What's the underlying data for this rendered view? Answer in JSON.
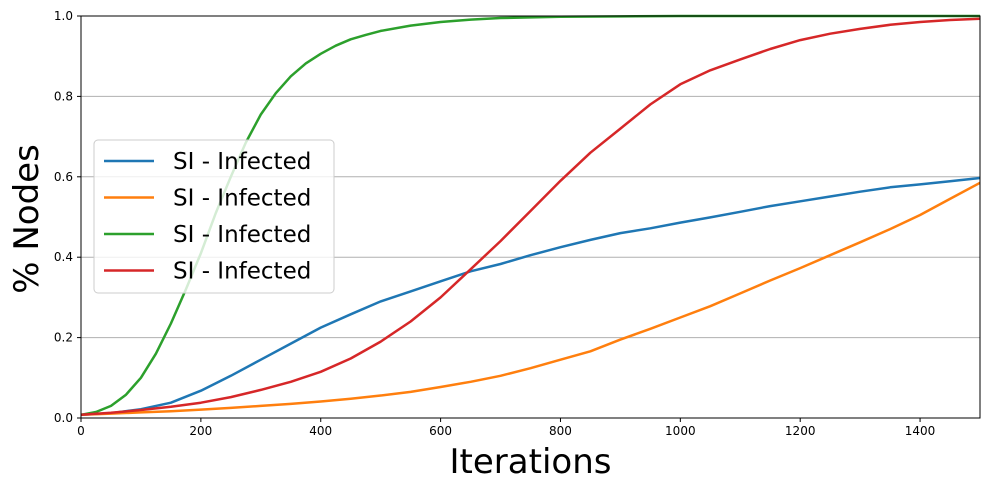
{
  "chart_data": {
    "type": "line",
    "xlabel": "Iterations",
    "ylabel": "% Nodes",
    "xlim": [
      0,
      1500
    ],
    "ylim": [
      0,
      1.0
    ],
    "x_ticks": [
      0,
      200,
      400,
      600,
      800,
      1000,
      1200,
      1400
    ],
    "y_ticks": [
      0.0,
      0.2,
      0.4,
      0.6,
      0.8,
      1.0
    ],
    "x_tick_labels": [
      "0",
      "200",
      "400",
      "600",
      "800",
      "1000",
      "1200",
      "1400"
    ],
    "y_tick_labels": [
      "0.0",
      "0.2",
      "0.4",
      "0.6",
      "0.8",
      "1.0"
    ],
    "grid": "horizontal",
    "legend_position": "center-left",
    "series": [
      {
        "name": "SI - Infected",
        "color": "#1f77b4",
        "x": [
          0,
          50,
          100,
          150,
          200,
          250,
          300,
          350,
          400,
          450,
          500,
          550,
          600,
          650,
          700,
          750,
          800,
          850,
          900,
          950,
          1000,
          1050,
          1100,
          1150,
          1200,
          1250,
          1300,
          1350,
          1400,
          1450,
          1500
        ],
        "y": [
          0.008,
          0.012,
          0.022,
          0.038,
          0.068,
          0.105,
          0.145,
          0.185,
          0.225,
          0.258,
          0.29,
          0.315,
          0.34,
          0.365,
          0.383,
          0.405,
          0.425,
          0.443,
          0.46,
          0.472,
          0.486,
          0.499,
          0.513,
          0.527,
          0.539,
          0.551,
          0.563,
          0.574,
          0.581,
          0.589,
          0.597
        ]
      },
      {
        "name": "SI - Infected",
        "color": "#ff7f0e",
        "x": [
          0,
          50,
          100,
          150,
          200,
          250,
          300,
          350,
          400,
          450,
          500,
          550,
          600,
          650,
          700,
          750,
          800,
          850,
          900,
          950,
          1000,
          1050,
          1100,
          1150,
          1200,
          1250,
          1300,
          1350,
          1400,
          1450,
          1500
        ],
        "y": [
          0.008,
          0.011,
          0.014,
          0.017,
          0.021,
          0.025,
          0.03,
          0.035,
          0.041,
          0.048,
          0.056,
          0.065,
          0.077,
          0.09,
          0.105,
          0.124,
          0.145,
          0.166,
          0.195,
          0.222,
          0.25,
          0.278,
          0.31,
          0.342,
          0.373,
          0.405,
          0.437,
          0.47,
          0.505,
          0.545,
          0.585
        ]
      },
      {
        "name": "SI - Infected",
        "color": "#2ca02c",
        "x": [
          0,
          25,
          50,
          75,
          100,
          125,
          150,
          175,
          200,
          225,
          250,
          275,
          300,
          325,
          350,
          375,
          400,
          425,
          450,
          475,
          500,
          550,
          600,
          650,
          700,
          800,
          900,
          1000,
          1200,
          1500
        ],
        "y": [
          0.008,
          0.015,
          0.03,
          0.058,
          0.1,
          0.16,
          0.235,
          0.32,
          0.41,
          0.51,
          0.6,
          0.685,
          0.755,
          0.808,
          0.85,
          0.882,
          0.906,
          0.926,
          0.942,
          0.953,
          0.963,
          0.976,
          0.985,
          0.991,
          0.995,
          0.998,
          0.999,
          1.0,
          1.0,
          1.0
        ]
      },
      {
        "name": "SI - Infected",
        "color": "#d62728",
        "x": [
          0,
          50,
          100,
          150,
          200,
          250,
          300,
          350,
          400,
          450,
          500,
          550,
          600,
          650,
          700,
          750,
          800,
          850,
          900,
          950,
          1000,
          1050,
          1100,
          1150,
          1200,
          1250,
          1300,
          1350,
          1400,
          1450,
          1500
        ],
        "y": [
          0.008,
          0.013,
          0.02,
          0.028,
          0.038,
          0.052,
          0.07,
          0.09,
          0.115,
          0.148,
          0.19,
          0.24,
          0.3,
          0.37,
          0.44,
          0.515,
          0.59,
          0.66,
          0.72,
          0.78,
          0.83,
          0.865,
          0.892,
          0.918,
          0.94,
          0.956,
          0.968,
          0.978,
          0.985,
          0.99,
          0.993
        ]
      }
    ]
  }
}
